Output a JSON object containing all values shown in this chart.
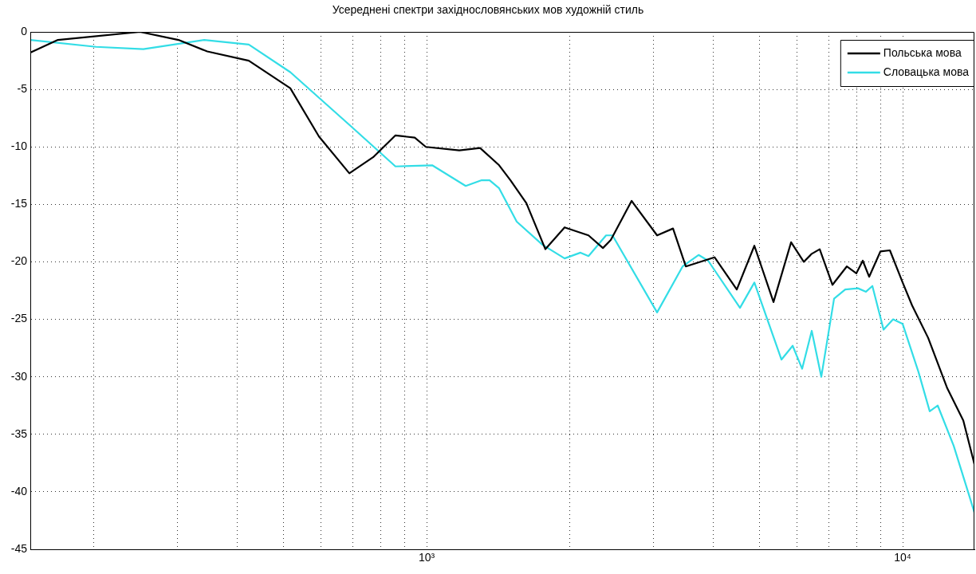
{
  "chart_data": {
    "type": "line",
    "title": "Усереднені спектри західнословянських мов художній стиль",
    "log": "x",
    "grid": true,
    "legend": "top right",
    "line_style": "solid",
    "marker": "none",
    "xlim": [
      147,
      14150
    ],
    "ylim": [
      -45,
      0
    ],
    "xticks": [
      {
        "value": 200,
        "label": null
      },
      {
        "value": 300,
        "label": null
      },
      {
        "value": 400,
        "label": null
      },
      {
        "value": 500,
        "label": null
      },
      {
        "value": 600,
        "label": null
      },
      {
        "value": 700,
        "label": null
      },
      {
        "value": 800,
        "label": null
      },
      {
        "value": 900,
        "label": null
      },
      {
        "value": 1000,
        "label": "10³"
      },
      {
        "value": 2000,
        "label": null
      },
      {
        "value": 3000,
        "label": null
      },
      {
        "value": 4000,
        "label": null
      },
      {
        "value": 5000,
        "label": null
      },
      {
        "value": 6000,
        "label": null
      },
      {
        "value": 7000,
        "label": null
      },
      {
        "value": 8000,
        "label": null
      },
      {
        "value": 9000,
        "label": null
      },
      {
        "value": 10000,
        "label": "10⁴"
      }
    ],
    "yticks": [
      0,
      {
        "value": -5,
        "label": "-5"
      },
      {
        "value": -10,
        "label": "-10"
      },
      {
        "value": -15,
        "label": "-15"
      },
      {
        "value": -20,
        "label": "-20"
      },
      {
        "value": -25,
        "label": "-25"
      },
      {
        "value": -30,
        "label": "-30"
      },
      {
        "value": -35,
        "label": "-35"
      },
      {
        "value": -40,
        "label": "-40"
      },
      {
        "value": -45,
        "label": "-45"
      }
    ],
    "series": [
      {
        "name": "Польська мова",
        "color": "#000000",
        "x": [
          147,
          168,
          250,
          301,
          346,
          423,
          517,
          594,
          688,
          772,
          860,
          944,
          996,
          1171,
          1295,
          1420,
          1500,
          1620,
          1776,
          1949,
          2188,
          2346,
          2437,
          2695,
          3049,
          3293,
          3503,
          4025,
          4483,
          4881,
          5354,
          5830,
          6198,
          6442,
          6695,
          7122,
          7632,
          7994,
          8246,
          8504,
          8979,
          9402,
          10000,
          10470,
          11310,
          12410,
          13410,
          14150
        ],
        "values": [
          -1.8,
          -0.7,
          0,
          -0.7,
          -1.7,
          -2.5,
          -4.9,
          -9.1,
          -12.3,
          -10.9,
          -9.0,
          -9.2,
          -10.0,
          -10.3,
          -10.1,
          -11.6,
          -12.9,
          -14.9,
          -18.9,
          -17.0,
          -17.7,
          -18.8,
          -18.1,
          -14.7,
          -17.7,
          -17.1,
          -20.4,
          -19.6,
          -22.4,
          -18.6,
          -23.5,
          -18.3,
          -20.0,
          -19.3,
          -18.9,
          -22.0,
          -20.4,
          -21.0,
          -19.9,
          -21.3,
          -19.1,
          -19.0,
          -21.8,
          -23.8,
          -26.6,
          -31.0,
          -33.8,
          -37.6
        ]
      },
      {
        "name": "Словацька мова",
        "color": "#33dde6",
        "x": [
          147,
          202,
          254,
          341,
          423,
          517,
          693,
          860,
          1027,
          1208,
          1305,
          1356,
          1420,
          1546,
          1750,
          1949,
          2105,
          2188,
          2382,
          2457,
          3049,
          3449,
          3726,
          3903,
          4553,
          4881,
          5565,
          5874,
          6150,
          6442,
          6747,
          7177,
          7574,
          8058,
          8375,
          8638,
          9118,
          9548,
          10000,
          10800,
          11400,
          11850,
          12800,
          13720,
          14150
        ],
        "values": [
          -0.7,
          -1.3,
          -1.5,
          -0.7,
          -1.1,
          -3.5,
          -8.2,
          -11.7,
          -11.6,
          -13.4,
          -12.9,
          -12.9,
          -13.6,
          -16.5,
          -18.5,
          -19.7,
          -19.2,
          -19.5,
          -17.7,
          -17.7,
          -24.4,
          -20.4,
          -19.4,
          -19.9,
          -24.0,
          -21.8,
          -28.5,
          -27.3,
          -29.3,
          -26.0,
          -30.0,
          -23.2,
          -22.4,
          -22.3,
          -22.6,
          -22.1,
          -25.9,
          -25.0,
          -25.4,
          -29.6,
          -33.0,
          -32.5,
          -36.0,
          -40.0,
          -41.8
        ]
      }
    ]
  }
}
